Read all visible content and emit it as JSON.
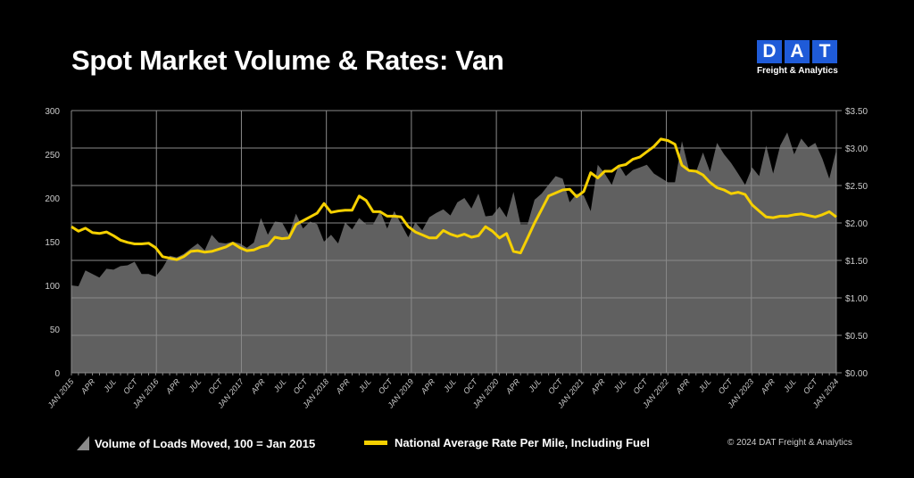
{
  "header": {
    "title": "Spot Market Volume & Rates: Van"
  },
  "logo": {
    "letters": [
      "D",
      "A",
      "T"
    ],
    "subtitle": "Freight & Analytics",
    "color": "#1f5bd8"
  },
  "footer": {
    "copyright": "© 2024 DAT Freight & Analytics"
  },
  "chart_data": {
    "type": "area+line",
    "title": "Spot Market Volume & Rates: Van",
    "x_tick_labels": [
      "JAN 2015",
      "APR",
      "JUL",
      "OCT",
      "JAN 2016",
      "APR",
      "JUL",
      "OCT",
      "JAN 2017",
      "APR",
      "JUL",
      "OCT",
      "JAN 2018",
      "APR",
      "JUL",
      "OCT",
      "JAN 2019",
      "APR",
      "JUL",
      "OCT",
      "JAN 2020",
      "APR",
      "JUL",
      "OCT",
      "JAN 2021",
      "APR",
      "JUL",
      "OCT",
      "JAN 2022",
      "APR",
      "JUL",
      "OCT",
      "JAN 2023",
      "APR",
      "JUL",
      "OCT",
      "JAN 2024"
    ],
    "x_range": [
      "Jan 2015",
      "Feb 2024"
    ],
    "y_left": {
      "range": [
        0,
        300
      ],
      "ticks": [
        "0",
        "50",
        "100",
        "150",
        "200",
        "250",
        "300"
      ]
    },
    "y_right": {
      "range": [
        0,
        3.5
      ],
      "ticks": [
        "$0.00",
        "$0.50",
        "$1.00",
        "$1.50",
        "$2.00",
        "$2.50",
        "$3.00",
        "$3.50"
      ]
    },
    "grid": true,
    "legend_placement": "bottom",
    "series": [
      {
        "name": "Volume of Loads Moved, 100 = Jan 2015",
        "type": "area",
        "axis": "left",
        "color": "#606060",
        "values": [
          100,
          99,
          117,
          113,
          109,
          119,
          118,
          122,
          123,
          127,
          113,
          113,
          110,
          120,
          134,
          132,
          136,
          142,
          148,
          140,
          158,
          149,
          148,
          150,
          148,
          143,
          149,
          177,
          158,
          173,
          172,
          158,
          182,
          165,
          173,
          170,
          150,
          158,
          148,
          172,
          164,
          177,
          170,
          170,
          185,
          165,
          185,
          170,
          155,
          172,
          163,
          178,
          183,
          187,
          180,
          195,
          200,
          188,
          205,
          179,
          180,
          190,
          178,
          207,
          170,
          170,
          198,
          205,
          215,
          225,
          222,
          195,
          205,
          203,
          185,
          238,
          228,
          215,
          238,
          225,
          232,
          235,
          238,
          228,
          223,
          218,
          218,
          265,
          232,
          230,
          252,
          230,
          263,
          250,
          240,
          228,
          215,
          235,
          225,
          260,
          228,
          260,
          275,
          250,
          268,
          258,
          263,
          245,
          222,
          255
        ]
      },
      {
        "name": "National Average Rate Per Mile, Including Fuel",
        "type": "line",
        "axis": "right",
        "color": "#f5d000",
        "values": [
          1.95,
          1.89,
          1.93,
          1.87,
          1.86,
          1.88,
          1.83,
          1.77,
          1.74,
          1.72,
          1.72,
          1.73,
          1.67,
          1.55,
          1.53,
          1.51,
          1.55,
          1.62,
          1.63,
          1.61,
          1.62,
          1.65,
          1.68,
          1.73,
          1.67,
          1.63,
          1.64,
          1.68,
          1.7,
          1.81,
          1.79,
          1.8,
          1.98,
          2.03,
          2.08,
          2.13,
          2.26,
          2.14,
          2.16,
          2.17,
          2.17,
          2.36,
          2.3,
          2.15,
          2.15,
          2.09,
          2.09,
          2.08,
          1.95,
          1.88,
          1.84,
          1.8,
          1.8,
          1.9,
          1.85,
          1.82,
          1.85,
          1.81,
          1.83,
          1.95,
          1.89,
          1.8,
          1.86,
          1.62,
          1.6,
          1.8,
          2.0,
          2.18,
          2.36,
          2.4,
          2.44,
          2.45,
          2.35,
          2.42,
          2.67,
          2.6,
          2.69,
          2.69,
          2.76,
          2.78,
          2.85,
          2.88,
          2.95,
          3.02,
          3.12,
          3.1,
          3.05,
          2.77,
          2.7,
          2.69,
          2.64,
          2.54,
          2.47,
          2.44,
          2.39,
          2.41,
          2.38,
          2.24,
          2.16,
          2.08,
          2.07,
          2.09,
          2.09,
          2.11,
          2.12,
          2.1,
          2.08,
          2.11,
          2.15,
          2.08
        ]
      }
    ]
  }
}
